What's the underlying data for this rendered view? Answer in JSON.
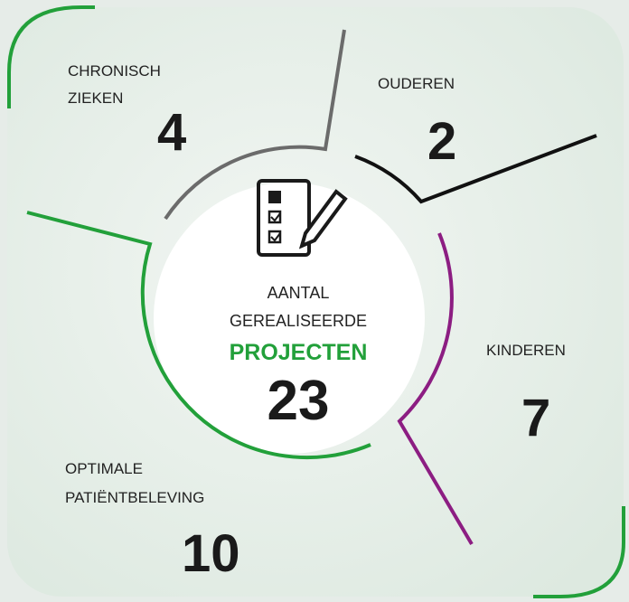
{
  "center": {
    "lines": [
      "AANTAL",
      "GEREALISEERDE"
    ],
    "highlight": "PROJECTEN",
    "total": 23
  },
  "segments": [
    {
      "label": [
        "CHRONISCH",
        "ZIEKEN"
      ],
      "value": 4
    },
    {
      "label": [
        "OUDEREN"
      ],
      "value": 2
    },
    {
      "label": [
        "KINDEREN"
      ],
      "value": 7
    },
    {
      "label": [
        "OPTIMALE",
        "PATIËNTBELEVING"
      ],
      "value": 10
    }
  ]
}
